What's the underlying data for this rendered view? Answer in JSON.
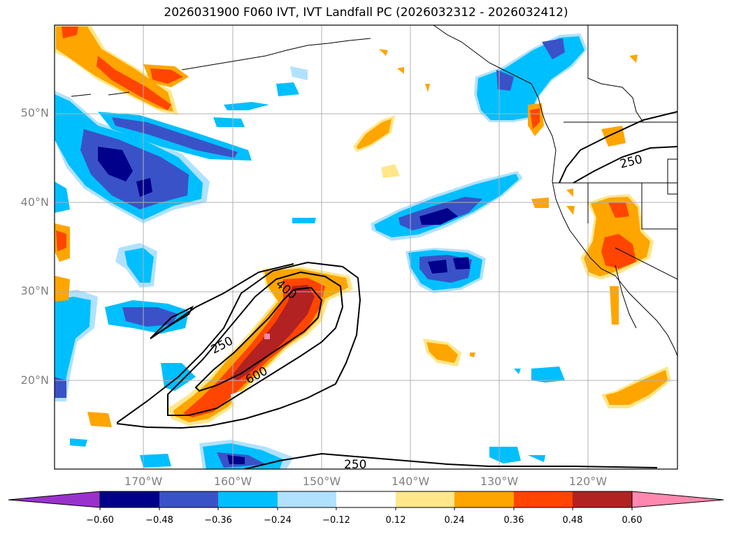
{
  "title": "2026031900 F060 IVT, IVT Landfall PC (2026032312 - 2026032412)",
  "lat_labels": [
    "50°N",
    "40°N",
    "30°N",
    "20°N"
  ],
  "lon_labels": [
    "170°W",
    "160°W",
    "150°W",
    "140°W",
    "130°W",
    "120°W"
  ],
  "contour_labels": [
    "250",
    "400",
    "600",
    "250",
    "250"
  ],
  "colorbar": {
    "ticks": [
      "−0.60",
      "−0.48",
      "−0.36",
      "−0.24",
      "−0.12",
      "0.12",
      "0.24",
      "0.36",
      "0.48",
      "0.60"
    ],
    "colors": [
      "#9932cc",
      "#00008b",
      "#3a52c8",
      "#00bfff",
      "#b0e2ff",
      "#ffffff",
      "#ffe78a",
      "#ffa500",
      "#ff4500",
      "#b22222",
      "#ff88b0"
    ]
  },
  "colors": {
    "land_outline": "#000000",
    "grid": "#b0b0b0"
  }
}
